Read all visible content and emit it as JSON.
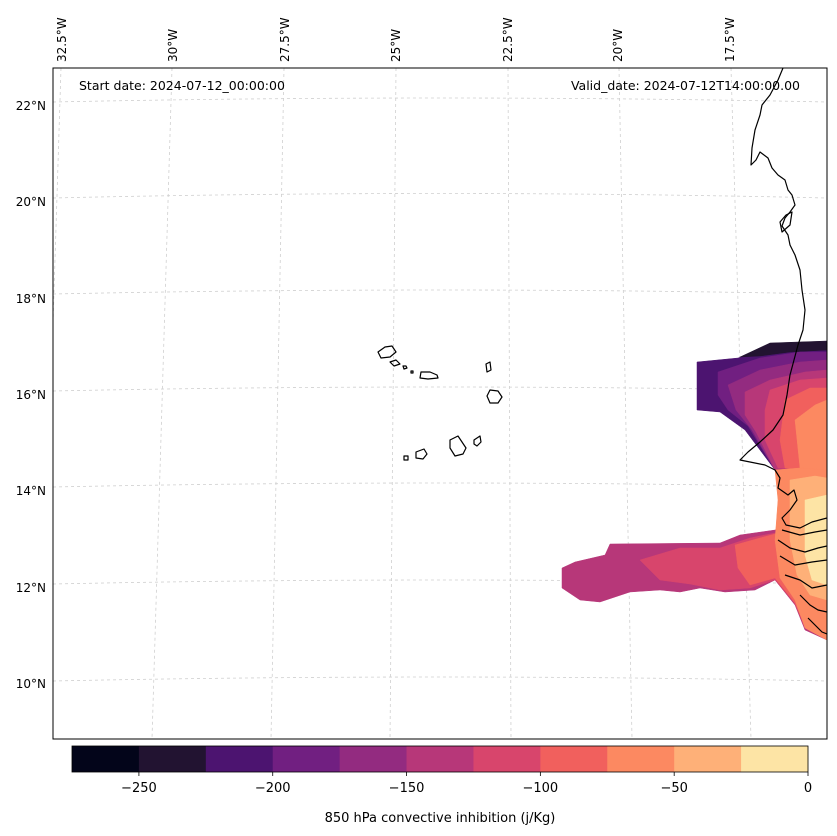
{
  "header": {
    "start_date": "Start date: 2024-07-12_00:00:00",
    "valid_date": "Valid_date: 2024-07-12T14:00:00.00"
  },
  "axes": {
    "lon_labels": [
      "32.5°W",
      "30°W",
      "27.5°W",
      "25°W",
      "22.5°W",
      "20°W",
      "17.5°W"
    ],
    "lat_labels": [
      "22°N",
      "20°N",
      "18°N",
      "16°N",
      "14°N",
      "12°N",
      "10°N"
    ]
  },
  "colorbar": {
    "title": "850 hPa convective inhibition (j/Kg)",
    "tick_labels": [
      "−250",
      "−200",
      "−150",
      "−100",
      "−50",
      "0"
    ],
    "levels": [
      -275,
      -250,
      -225,
      -200,
      -175,
      -150,
      -125,
      -100,
      -75,
      -50,
      -25,
      0
    ],
    "colors": [
      "#03051a",
      "#221331",
      "#4c1470",
      "#711f81",
      "#932b80",
      "#b73779",
      "#d8456c",
      "#f1605d",
      "#fc8961",
      "#feb078",
      "#fde4a5"
    ]
  },
  "map": {
    "projection": "Lambert Conformal",
    "gridlines": true,
    "coastline_color": "#000000",
    "field_colors": {
      "darkest": "#221331",
      "purple": "#4c1470",
      "violet": "#711f81",
      "magenta": "#932b80",
      "rose": "#b73779",
      "pink": "#d8456c",
      "salmon": "#f1605d",
      "orange": "#fc8961",
      "light_orange": "#feb078",
      "cream": "#fde4a5"
    }
  }
}
